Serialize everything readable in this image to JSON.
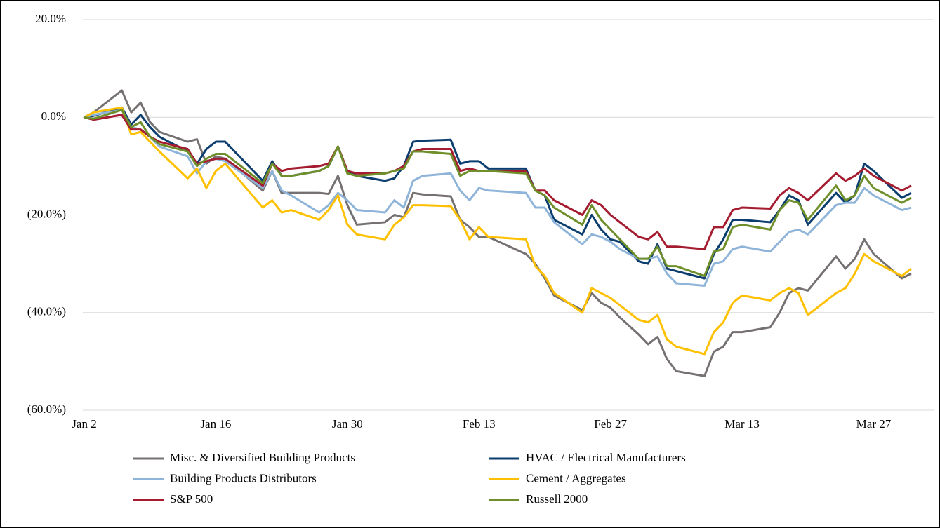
{
  "chart_data": {
    "type": "line",
    "x": [
      "Jan 2",
      "Jan 3",
      "Jan 6",
      "Jan 7",
      "Jan 8",
      "Jan 9",
      "Jan 10",
      "Jan 13",
      "Jan 14",
      "Jan 15",
      "Jan 16",
      "Jan 17",
      "Jan 21",
      "Jan 22",
      "Jan 23",
      "Jan 24",
      "Jan 27",
      "Jan 28",
      "Jan 29",
      "Jan 30",
      "Jan 31",
      "Feb 3",
      "Feb 4",
      "Feb 5",
      "Feb 6",
      "Feb 7",
      "Feb 10",
      "Feb 11",
      "Feb 12",
      "Feb 13",
      "Feb 14",
      "Feb 18",
      "Feb 19",
      "Feb 20",
      "Feb 21",
      "Feb 24",
      "Feb 25",
      "Feb 26",
      "Feb 27",
      "Feb 28",
      "Mar 2",
      "Mar 3",
      "Mar 4",
      "Mar 5",
      "Mar 6",
      "Mar 9",
      "Mar 10",
      "Mar 11",
      "Mar 12",
      "Mar 13",
      "Mar 16",
      "Mar 17",
      "Mar 18",
      "Mar 19",
      "Mar 20",
      "Mar 23",
      "Mar 24",
      "Mar 25",
      "Mar 26",
      "Mar 27",
      "Mar 30",
      "Mar 31"
    ],
    "xlim": [
      "Jan 2",
      "Mar 31"
    ],
    "xticks": [
      "Jan 2",
      "Jan 16",
      "Jan 30",
      "Feb 13",
      "Feb 27",
      "Mar 13",
      "Mar 27"
    ],
    "ylim": [
      -60,
      20
    ],
    "yticks": [
      {
        "value": 20,
        "label": "20.0%"
      },
      {
        "value": 0,
        "label": "0.0%"
      },
      {
        "value": -20,
        "label": "(20.0%)"
      },
      {
        "value": -40,
        "label": "(40.0%)"
      },
      {
        "value": -60,
        "label": "(60.0%)"
      }
    ],
    "grid": true,
    "legend": "bottom",
    "series": [
      {
        "name": "Misc. & Diversified Building Products",
        "color": "#767171",
        "values": [
          0,
          1,
          5.5,
          1,
          3,
          -1,
          -3,
          -5,
          -4.5,
          -9.5,
          -8,
          -8.5,
          -15,
          -11,
          -15.5,
          -15.5,
          -15.5,
          -15.7,
          -12,
          -18,
          -22,
          -21.5,
          -20,
          -20.5,
          -15.5,
          -15.8,
          -16.2,
          -21,
          -22.5,
          -24.5,
          -24.5,
          -28,
          -30,
          -33,
          -36.5,
          -39.5,
          -36,
          -38,
          -39,
          -41,
          -44.5,
          -46.5,
          -45,
          -49.5,
          -52,
          -53,
          -48,
          -47,
          -44,
          -44,
          -43,
          -40,
          -36,
          -35,
          -35.5,
          -28.5,
          -31,
          -29,
          -25,
          -28,
          -33,
          -32
        ]
      },
      {
        "name": "HVAC / Electrical Manufacturers",
        "color": "#0b3d6f",
        "values": [
          0,
          0.3,
          2,
          -1.5,
          0.5,
          -2,
          -4,
          -7,
          -9.5,
          -6.5,
          -5,
          -5,
          -13,
          -9,
          -12,
          -12,
          -11,
          -10,
          -6,
          -11,
          -12,
          -13,
          -12.5,
          -10,
          -5,
          -4.8,
          -4.6,
          -9.5,
          -9,
          -9,
          -10.5,
          -10.5,
          -15,
          -16,
          -21,
          -24,
          -20,
          -23,
          -25,
          -25.5,
          -29.5,
          -30,
          -26,
          -31,
          -31.5,
          -33,
          -28,
          -25,
          -21,
          -21,
          -21.5,
          -19,
          -16,
          -17,
          -22,
          -15.5,
          -17.5,
          -16,
          -9.5,
          -11,
          -16.5,
          -15.5
        ]
      },
      {
        "name": "Building Products Distributors",
        "color": "#8fb4d9",
        "values": [
          0,
          0.5,
          1.5,
          -2,
          -2.5,
          -4,
          -6,
          -8,
          -11.5,
          -9,
          -8.5,
          -9,
          -14.5,
          -11,
          -15,
          -16,
          -19.5,
          -18,
          -15.5,
          -17,
          -19,
          -19.5,
          -17,
          -18.5,
          -13,
          -12,
          -11.5,
          -15,
          -17,
          -14.5,
          -15,
          -15.5,
          -18.5,
          -18.5,
          -21.5,
          -26,
          -24,
          -24.5,
          -25.5,
          -27,
          -29,
          -29,
          -28.5,
          -32,
          -34,
          -34.5,
          -30,
          -29.5,
          -27,
          -26.5,
          -27.5,
          -25.5,
          -23.5,
          -23,
          -24,
          -18,
          -17.5,
          -17.5,
          -14.5,
          -16,
          -19,
          -18.5
        ]
      },
      {
        "name": "Cement / Aggregates",
        "color": "#ffc000",
        "values": [
          0,
          1,
          2,
          -3.5,
          -3,
          -5,
          -7,
          -12.5,
          -10.5,
          -14.5,
          -11,
          -9.5,
          -18.5,
          -17,
          -19.5,
          -19,
          -21,
          -19,
          -16,
          -22,
          -24,
          -25,
          -22,
          -20.5,
          -18,
          -18,
          -18.2,
          -21,
          -25,
          -22.5,
          -24.5,
          -25,
          -30.5,
          -32.5,
          -36,
          -40,
          -35,
          -36,
          -37,
          -38.5,
          -41.5,
          -42,
          -40.5,
          -45.5,
          -47,
          -48.5,
          -44,
          -42,
          -38,
          -36.5,
          -37.5,
          -36,
          -35,
          -36,
          -40.5,
          -36,
          -35,
          -32,
          -28,
          -29.5,
          -32.5,
          -31
        ]
      },
      {
        "name": "S&P 500",
        "color": "#a51c30",
        "values": [
          0,
          -0.5,
          0.5,
          -2.5,
          -2.5,
          -4,
          -5,
          -6.5,
          -9.5,
          -9,
          -8.5,
          -8.5,
          -14,
          -9.5,
          -11,
          -10.5,
          -10,
          -9.5,
          -6,
          -11,
          -11.5,
          -11.5,
          -11,
          -10,
          -7,
          -6.5,
          -6.5,
          -11,
          -10.5,
          -11,
          -11,
          -11,
          -15,
          -15,
          -17,
          -20,
          -17,
          -18,
          -20,
          -21.5,
          -24.5,
          -25,
          -23.5,
          -26.5,
          -26.5,
          -27,
          -22.5,
          -22.5,
          -19,
          -18.5,
          -18.7,
          -16,
          -14.5,
          -15.5,
          -17,
          -11.5,
          -13,
          -12,
          -10.5,
          -12,
          -15,
          -14
        ]
      },
      {
        "name": "Russell 2000",
        "color": "#6e8f2a",
        "values": [
          0,
          -0.3,
          1.5,
          -2,
          -1,
          -4,
          -5.5,
          -7,
          -10,
          -8.5,
          -7.5,
          -7.5,
          -13.5,
          -9.5,
          -12,
          -12,
          -11,
          -10,
          -6,
          -11.5,
          -12,
          -11.5,
          -11,
          -10.5,
          -7,
          -7,
          -7.5,
          -12,
          -11,
          -11,
          -11,
          -11.5,
          -15,
          -16,
          -18.5,
          -22,
          -18,
          -21,
          -23,
          -25,
          -29,
          -29,
          -26.5,
          -30.5,
          -30.5,
          -32.5,
          -27.5,
          -27,
          -22.5,
          -22,
          -23,
          -19,
          -17,
          -17.5,
          -21,
          -14,
          -17,
          -16,
          -12,
          -14.5,
          -17.5,
          -16.5
        ]
      }
    ]
  }
}
